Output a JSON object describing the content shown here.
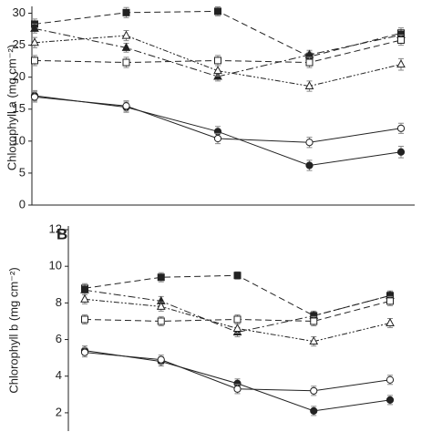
{
  "chart_data": [
    {
      "type": "line",
      "y_label": "Chlorophyll a (mg cm⁻²)",
      "categories": [
        null,
        null,
        null,
        null,
        null
      ],
      "ylim": [
        0,
        30.5
      ],
      "yticks": [
        0,
        5,
        10,
        15,
        20,
        25,
        30
      ],
      "series": [
        {
          "color": "#222222",
          "marker": "square",
          "filled": true,
          "line_style": "dashed",
          "values": [
            28.3,
            30.1,
            30.3,
            23.2,
            26.9
          ],
          "errors": [
            0.8,
            0.8,
            0.7,
            0.7,
            0.8
          ]
        },
        {
          "color": "#222222",
          "marker": "triangle",
          "filled": true,
          "line_style": "dash-dot",
          "values": [
            27.6,
            24.6,
            20.1,
            23.5,
            26.6
          ],
          "errors": [
            0.7,
            0.7,
            0.7,
            0.7,
            0.7
          ]
        },
        {
          "color": "#222222",
          "marker": "triangle",
          "filled": false,
          "line_style": "dash-dot-dot",
          "values": [
            25.4,
            26.5,
            21.0,
            18.6,
            22.0
          ],
          "errors": [
            0.8,
            0.8,
            0.8,
            0.8,
            0.9
          ]
        },
        {
          "color": "#222222",
          "marker": "square",
          "filled": false,
          "line_style": "dashed",
          "values": [
            22.6,
            22.3,
            22.6,
            22.3,
            25.8
          ],
          "errors": [
            0.8,
            0.8,
            0.8,
            0.8,
            0.8
          ]
        },
        {
          "color": "#222222",
          "marker": "circle",
          "filled": true,
          "line_style": "solid",
          "values": [
            17.1,
            15.3,
            11.5,
            6.2,
            8.3
          ],
          "errors": [
            0.8,
            0.8,
            0.8,
            0.8,
            0.9
          ]
        },
        {
          "color": "#222222",
          "marker": "circle",
          "filled": false,
          "line_style": "solid",
          "values": [
            16.9,
            15.5,
            10.4,
            9.8,
            12.0
          ],
          "errors": [
            0.8,
            0.8,
            0.8,
            0.8,
            0.8
          ]
        }
      ]
    },
    {
      "type": "line",
      "panel_label": "B",
      "y_label": "Chlorophyll b (mg cm⁻²)",
      "categories": [
        null,
        null,
        null,
        null,
        null
      ],
      "ylim": [
        1,
        12
      ],
      "yticks": [
        2,
        4,
        6,
        8,
        10,
        12
      ],
      "series": [
        {
          "color": "#222222",
          "marker": "square",
          "filled": true,
          "line_style": "dashed",
          "values": [
            8.8,
            9.4,
            9.5,
            7.3,
            8.4
          ],
          "errors": [
            0.25,
            0.25,
            0.2,
            0.2,
            0.2
          ]
        },
        {
          "color": "#222222",
          "marker": "triangle",
          "filled": true,
          "line_style": "dash-dot",
          "values": [
            8.7,
            8.1,
            6.4,
            7.3,
            8.4
          ],
          "errors": [
            0.25,
            0.25,
            0.25,
            0.25,
            0.25
          ]
        },
        {
          "color": "#222222",
          "marker": "triangle",
          "filled": false,
          "line_style": "dash-dot-dot",
          "values": [
            8.2,
            7.8,
            6.6,
            5.9,
            6.9
          ],
          "errors": [
            0.25,
            0.25,
            0.25,
            0.25,
            0.25
          ]
        },
        {
          "color": "#222222",
          "marker": "square",
          "filled": false,
          "line_style": "dashed",
          "values": [
            7.1,
            7.0,
            7.1,
            7.0,
            8.1
          ],
          "errors": [
            0.25,
            0.25,
            0.25,
            0.25,
            0.25
          ]
        },
        {
          "color": "#222222",
          "marker": "circle",
          "filled": true,
          "line_style": "solid",
          "values": [
            5.4,
            4.8,
            3.6,
            2.1,
            2.7
          ],
          "errors": [
            0.25,
            0.25,
            0.25,
            0.25,
            0.25
          ]
        },
        {
          "color": "#222222",
          "marker": "circle",
          "filled": false,
          "line_style": "solid",
          "values": [
            5.3,
            4.9,
            3.3,
            3.2,
            3.8
          ],
          "errors": [
            0.25,
            0.25,
            0.25,
            0.25,
            0.25
          ]
        }
      ]
    }
  ]
}
